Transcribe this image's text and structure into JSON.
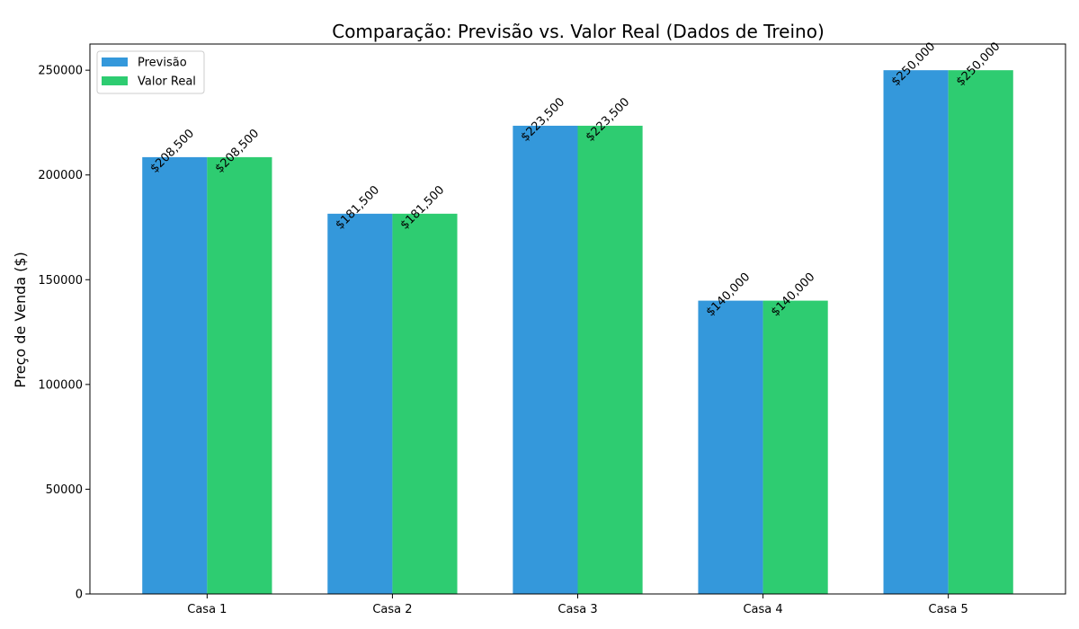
{
  "chart_data": {
    "type": "bar",
    "title": "Comparação: Previsão vs. Valor Real (Dados de Treino)",
    "xlabel": "",
    "ylabel": "Preço de Venda ($)",
    "categories": [
      "Casa 1",
      "Casa 2",
      "Casa 3",
      "Casa 4",
      "Casa 5"
    ],
    "series": [
      {
        "name": "Previsão",
        "color": "#3498db",
        "values": [
          208500,
          181500,
          223500,
          140000,
          250000
        ],
        "labels": [
          "$208,500",
          "$181,500",
          "$223,500",
          "$140,000",
          "$250,000"
        ]
      },
      {
        "name": "Valor Real",
        "color": "#2ecc71",
        "values": [
          208500,
          181500,
          223500,
          140000,
          250000
        ],
        "labels": [
          "$208,500",
          "$181,500",
          "$223,500",
          "$140,000",
          "$250,000"
        ]
      }
    ],
    "ylim": [
      0,
      262500
    ],
    "yticks": [
      0,
      50000,
      100000,
      150000,
      200000,
      250000
    ],
    "ytick_labels": [
      "0",
      "50000",
      "100000",
      "150000",
      "200000",
      "250000"
    ],
    "legend_position": "upper-left",
    "grid": false
  }
}
